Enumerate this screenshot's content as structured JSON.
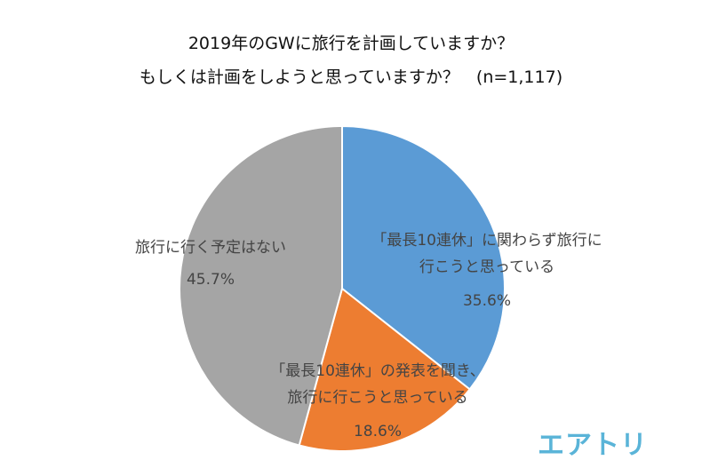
{
  "header": {
    "title_line1": "2019年のGWに旅行を計画していますか？",
    "title_line2": "もしくは計画をしようと思っていますか？　(n=1,117)"
  },
  "chart_data": {
    "type": "pie",
    "title": "2019年のGWに旅行を計画していますか？ もしくは計画をしようと思っていますか？　(n=1,117)",
    "slices": [
      {
        "label_lines": [
          "「最長10連休」に関わらず旅行に",
          "行こうと思っている"
        ],
        "value": 35.6,
        "display": "35.6%",
        "color": "#5B9BD5"
      },
      {
        "label_lines": [
          "「最長10連休」の発表を聞き、",
          "旅行に行こうと思っている"
        ],
        "value": 18.6,
        "display": "18.6%",
        "color": "#ED7D31"
      },
      {
        "label_lines": [
          "旅行に行く予定はない"
        ],
        "value": 45.7,
        "display": "45.7%",
        "color": "#A5A5A5"
      }
    ],
    "start": "12 o'clock",
    "direction": "clockwise"
  },
  "brand": {
    "logo_text": "エアトリ",
    "logo_color": "#5ab4d8"
  }
}
